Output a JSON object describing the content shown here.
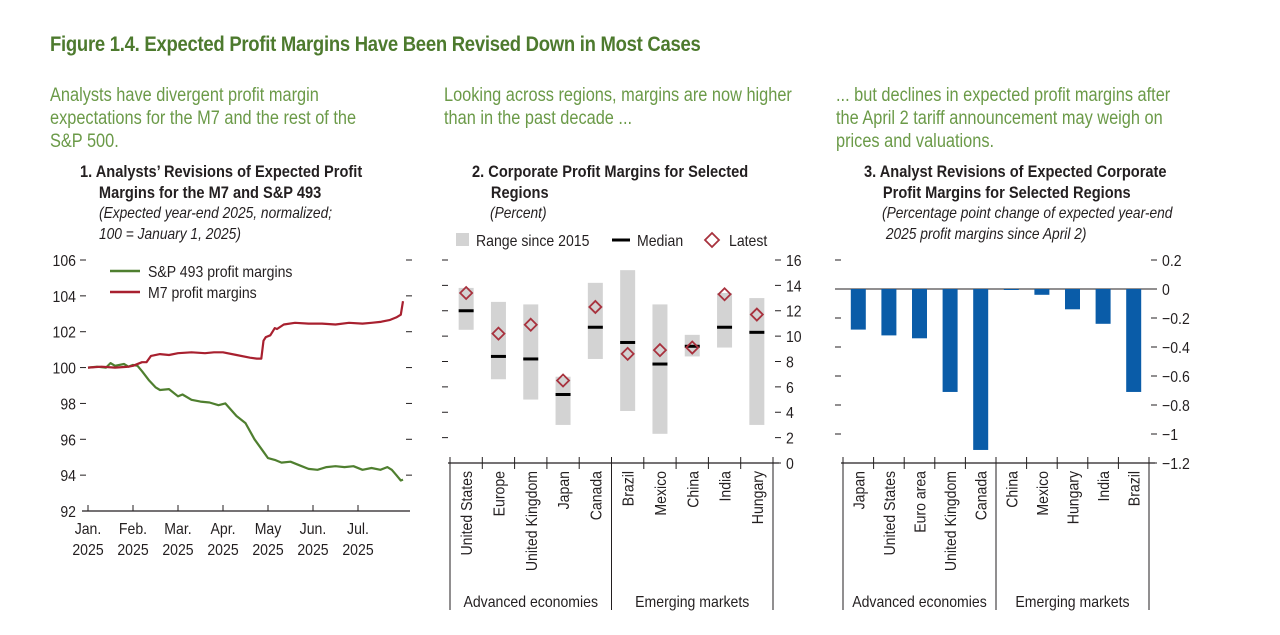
{
  "figure": {
    "title": "Figure 1.4. Expected Profit Margins Have Been Revised Down in Most Cases",
    "colors": {
      "title_green": "#4d7a2e",
      "lead_green": "#6b9a48",
      "sp493_line": "#4f7f2f",
      "m7_line": "#a8202f",
      "range_bar": "#d3d3d3",
      "median_mark": "#000000",
      "latest_diamond": "#a8323e",
      "revision_bar": "#0a5ca8"
    }
  },
  "panels": [
    {
      "lead": [
        "Analysts have divergent profit margin",
        "expectations for the M7 and the rest of the",
        "S&P 500."
      ],
      "number": "1.",
      "title_lines": [
        "Analysts’ Revisions of Expected Profit",
        "Margins for the M7 and S&P 493"
      ],
      "subtitle_lines": [
        "(Expected year-end 2025, normalized;",
        "100 = January 1, 2025)"
      ]
    },
    {
      "lead": [
        "Looking across regions, margins are now higher",
        "than in the past decade ..."
      ],
      "number": "2.",
      "title_lines": [
        "Corporate Profit Margins for Selected",
        "Regions"
      ],
      "subtitle_lines": [
        "(Percent)"
      ]
    },
    {
      "lead": [
        "... but declines in expected profit margins after",
        "the April 2 tariff announcement may weigh on",
        "prices and valuations."
      ],
      "number": "3.",
      "title_lines": [
        "Analyst Revisions of Expected Corporate",
        "Profit Margins for Selected Regions"
      ],
      "subtitle_lines": [
        "(Percentage point change of expected year-end",
        " 2025 profit margins since April 2)"
      ]
    }
  ],
  "chart_data": [
    {
      "type": "line",
      "title": "Analysts’ Revisions of Expected Profit Margins for the M7 and S&P 493",
      "subtitle": "(Expected year-end 2025, normalized; 100 = January 1, 2025)",
      "xlabel": "",
      "ylabel": "",
      "x_tick_labels": [
        [
          "Jan.",
          "2025"
        ],
        [
          "Feb.",
          "2025"
        ],
        [
          "Mar.",
          "2025"
        ],
        [
          "Apr.",
          "2025"
        ],
        [
          "May",
          "2025"
        ],
        [
          "Jun.",
          "2025"
        ],
        [
          "Jul.",
          "2025"
        ]
      ],
      "x_range_months": [
        0,
        7.0
      ],
      "ylim": [
        92,
        106
      ],
      "y_ticks": [
        92,
        94,
        96,
        98,
        100,
        102,
        104,
        106
      ],
      "legend_position": "top-left",
      "series": [
        {
          "name": "S&P 493 profit margins",
          "color": "#4f7f2f",
          "x": [
            0,
            0.2,
            0.4,
            0.5,
            0.6,
            0.8,
            0.9,
            1.0,
            1.1,
            1.2,
            1.35,
            1.5,
            1.6,
            1.8,
            2.0,
            2.1,
            2.3,
            2.5,
            2.7,
            2.9,
            3.05,
            3.3,
            3.5,
            3.7,
            3.9,
            4.0,
            4.15,
            4.3,
            4.5,
            4.7,
            4.9,
            5.1,
            5.3,
            5.5,
            5.7,
            5.9,
            6.1,
            6.3,
            6.5,
            6.65,
            6.75,
            6.85,
            6.95,
            7.0
          ],
          "values": [
            100.0,
            100.05,
            100.0,
            100.25,
            100.1,
            100.2,
            100.05,
            100.15,
            100.1,
            99.8,
            99.3,
            98.9,
            98.75,
            98.8,
            98.4,
            98.5,
            98.2,
            98.1,
            98.05,
            97.9,
            98.0,
            97.3,
            96.9,
            96.0,
            95.3,
            94.95,
            94.85,
            94.7,
            94.75,
            94.55,
            94.35,
            94.3,
            94.45,
            94.5,
            94.45,
            94.5,
            94.3,
            94.4,
            94.3,
            94.45,
            94.3,
            94.0,
            93.7,
            93.75
          ]
        },
        {
          "name": "M7 profit margins",
          "color": "#a8202f",
          "x": [
            0,
            0.3,
            0.6,
            0.9,
            1.0,
            1.2,
            1.3,
            1.4,
            1.6,
            1.8,
            2.0,
            2.3,
            2.6,
            2.8,
            3.0,
            3.3,
            3.6,
            3.75,
            3.85,
            3.9,
            3.95,
            4.05,
            4.15,
            4.2,
            4.35,
            4.6,
            4.9,
            5.2,
            5.5,
            5.8,
            6.1,
            6.3,
            6.5,
            6.7,
            6.85,
            6.95,
            7.0
          ],
          "values": [
            100.0,
            100.05,
            100.0,
            100.05,
            100.1,
            100.3,
            100.3,
            100.65,
            100.75,
            100.7,
            100.8,
            100.85,
            100.8,
            100.85,
            100.85,
            100.7,
            100.55,
            100.5,
            100.5,
            101.5,
            101.7,
            101.8,
            102.2,
            102.15,
            102.4,
            102.5,
            102.45,
            102.45,
            102.4,
            102.5,
            102.45,
            102.5,
            102.55,
            102.65,
            102.8,
            102.95,
            103.7
          ]
        }
      ]
    },
    {
      "type": "range",
      "title": "Corporate Profit Margins for Selected Regions",
      "subtitle": "(Percent)",
      "ylim": [
        0,
        16
      ],
      "y_ticks": [
        0,
        2,
        4,
        6,
        8,
        10,
        12,
        14,
        16
      ],
      "legend": [
        {
          "label": "Range since 2015",
          "marker": "gray-square"
        },
        {
          "label": "Median",
          "marker": "black-dash"
        },
        {
          "label": "Latest",
          "marker": "red-diamond"
        }
      ],
      "legend_position": "top",
      "categories": [
        "United States",
        "Europe",
        "United Kingdom",
        "Japan",
        "Canada",
        "Brazil",
        "Mexico",
        "China",
        "India",
        "Hungary"
      ],
      "groups": [
        {
          "label": "Advanced economies",
          "members": [
            "United States",
            "Europe",
            "United Kingdom",
            "Japan",
            "Canada"
          ]
        },
        {
          "label": "Emerging markets",
          "members": [
            "Brazil",
            "Mexico",
            "China",
            "India",
            "Hungary"
          ]
        }
      ],
      "series": [
        {
          "name": "Range since 2015 (low)",
          "values": [
            10.5,
            6.6,
            5.0,
            3.0,
            8.2,
            4.1,
            2.3,
            8.4,
            9.1,
            3.0
          ]
        },
        {
          "name": "Range since 2015 (high)",
          "values": [
            13.8,
            12.7,
            12.5,
            6.8,
            14.2,
            15.2,
            12.5,
            10.1,
            13.4,
            13.0
          ]
        },
        {
          "name": "Median",
          "values": [
            12.0,
            8.4,
            8.2,
            5.4,
            10.7,
            9.5,
            7.8,
            9.2,
            10.7,
            10.3
          ]
        },
        {
          "name": "Latest",
          "values": [
            13.4,
            10.2,
            10.9,
            6.5,
            12.3,
            8.6,
            8.9,
            9.1,
            13.3,
            11.7
          ]
        }
      ]
    },
    {
      "type": "bar",
      "title": "Analyst Revisions of Expected Corporate Profit Margins for Selected Regions",
      "subtitle": "(Percentage point change of expected year-end 2025 profit margins since April 2)",
      "ylim": [
        -1.2,
        0.2
      ],
      "y_ticks": [
        0.2,
        0,
        -0.2,
        -0.4,
        -0.6,
        -0.8,
        -1,
        -1.2
      ],
      "y_tick_labels": [
        "0.2",
        "0",
        "−0.2",
        "−0.4",
        "−0.6",
        "−0.8",
        "−1",
        "−1.2"
      ],
      "categories": [
        "Japan",
        "United States",
        "Euro area",
        "United Kingdom",
        "Canada",
        "China",
        "Mexico",
        "Hungary",
        "India",
        "Brazil"
      ],
      "groups": [
        {
          "label": "Advanced economies",
          "members": [
            "Japan",
            "United States",
            "Euro area",
            "United Kingdom",
            "Canada"
          ]
        },
        {
          "label": "Emerging markets",
          "members": [
            "China",
            "Mexico",
            "Hungary",
            "India",
            "Brazil"
          ]
        }
      ],
      "values": [
        -0.28,
        -0.32,
        -0.34,
        -0.71,
        -1.11,
        -0.005,
        -0.04,
        -0.14,
        -0.24,
        -0.71
      ]
    }
  ]
}
